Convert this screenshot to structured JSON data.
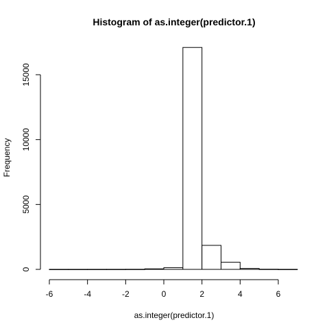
{
  "chart_data": {
    "type": "bar",
    "title": "Histogram of as.integer(predictor.1)",
    "xlabel": "as.integer(predictor.1)",
    "ylabel": "Frequency",
    "xlim": [
      -6,
      7
    ],
    "ylim": [
      0,
      17500
    ],
    "x_ticks": [
      -6,
      -4,
      -2,
      0,
      2,
      4,
      6
    ],
    "x_tick_labels": [
      "-6",
      "-4",
      "-2",
      "0",
      "2",
      "4",
      "6"
    ],
    "y_ticks": [
      0,
      5000,
      10000,
      15000
    ],
    "y_tick_labels": [
      "0",
      "5000",
      "10000",
      "15000"
    ],
    "grid": false,
    "bins": [
      {
        "start": -6,
        "end": -5,
        "count": 3
      },
      {
        "start": -5,
        "end": -4,
        "count": 3
      },
      {
        "start": -4,
        "end": -3,
        "count": 4
      },
      {
        "start": -3,
        "end": -2,
        "count": 5
      },
      {
        "start": -2,
        "end": -1,
        "count": 8
      },
      {
        "start": -1,
        "end": 0,
        "count": 40
      },
      {
        "start": 0,
        "end": 1,
        "count": 130
      },
      {
        "start": 1,
        "end": 2,
        "count": 17100
      },
      {
        "start": 2,
        "end": 3,
        "count": 1850
      },
      {
        "start": 3,
        "end": 4,
        "count": 550
      },
      {
        "start": 4,
        "end": 5,
        "count": 70
      },
      {
        "start": 5,
        "end": 6,
        "count": 12
      },
      {
        "start": 6,
        "end": 7,
        "count": 4
      }
    ],
    "colors": {
      "bar_fill": "#ffffff",
      "bar_stroke": "#000000",
      "axis": "#000000"
    }
  }
}
